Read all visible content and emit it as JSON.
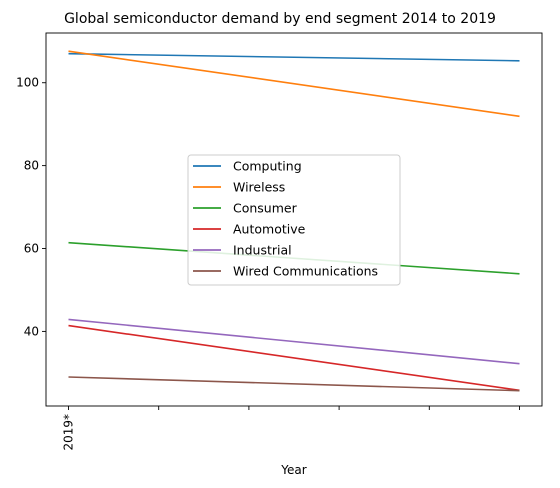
{
  "chart_data": {
    "type": "line",
    "title": "Global semiconductor demand by end segment 2014 to 2019",
    "xlabel": "Year",
    "ylabel": "",
    "x_tick_labels": [
      "2019*",
      "",
      "",
      "",
      "",
      ""
    ],
    "x": [
      0,
      5
    ],
    "ylim": [
      22,
      112
    ],
    "yticks": [
      40,
      60,
      80,
      100
    ],
    "grid": false,
    "legend_position": "center",
    "series": [
      {
        "name": "Computing",
        "color": "#1f77b4",
        "values": [
          107.0,
          105.3
        ]
      },
      {
        "name": "Wireless",
        "color": "#ff7f0e",
        "values": [
          107.6,
          91.9
        ]
      },
      {
        "name": "Consumer",
        "color": "#2ca02c",
        "values": [
          61.4,
          53.9
        ]
      },
      {
        "name": "Automotive",
        "color": "#d62728",
        "values": [
          41.4,
          25.8
        ]
      },
      {
        "name": "Industrial",
        "color": "#9467bd",
        "values": [
          42.9,
          32.2
        ]
      },
      {
        "name": "Wired Communications",
        "color": "#8c564b",
        "values": [
          29.0,
          25.7
        ]
      }
    ]
  }
}
